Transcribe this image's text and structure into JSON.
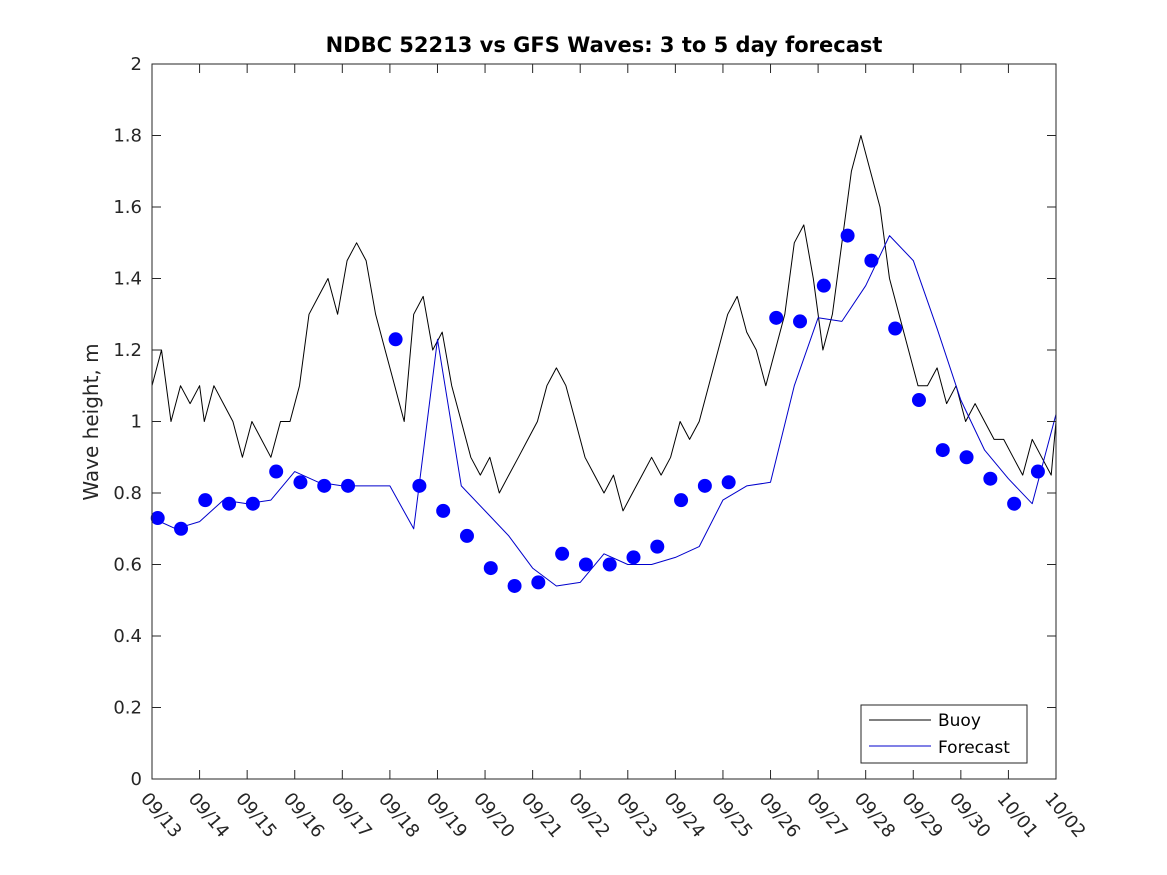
{
  "chart_data": {
    "type": "line",
    "title": "NDBC 52213 vs GFS Waves: 3 to 5 day forecast",
    "xlabel": "",
    "ylabel": "Wave height, m",
    "ylim": [
      0,
      2
    ],
    "xlim": [
      0,
      19
    ],
    "yticks": [
      0,
      0.2,
      0.4,
      0.6,
      0.8,
      1,
      1.2,
      1.4,
      1.6,
      1.8,
      2
    ],
    "ytick_labels": [
      "0",
      "0.2",
      "0.4",
      "0.6",
      "0.8",
      "1",
      "1.2",
      "1.4",
      "1.6",
      "1.8",
      "2"
    ],
    "xtick_labels": [
      "09/13",
      "09/14",
      "09/15",
      "09/16",
      "09/17",
      "09/18",
      "09/19",
      "09/20",
      "09/21",
      "09/22",
      "09/23",
      "09/24",
      "09/25",
      "09/26",
      "09/27",
      "09/28",
      "09/29",
      "09/30",
      "10/01",
      "10/02"
    ],
    "grid": false,
    "legend": {
      "position": "bottom-right",
      "entries": [
        {
          "label": "Buoy",
          "color": "#000000"
        },
        {
          "label": "Forecast",
          "color": "#0000cc"
        }
      ]
    },
    "series": [
      {
        "name": "Buoy",
        "color": "#000000",
        "x": [
          0,
          0.2,
          0.4,
          0.6,
          0.8,
          1,
          1.1,
          1.3,
          1.5,
          1.7,
          1.9,
          2.1,
          2.3,
          2.5,
          2.7,
          2.9,
          3.1,
          3.3,
          3.5,
          3.7,
          3.9,
          4.1,
          4.3,
          4.5,
          4.7,
          4.9,
          5.1,
          5.3,
          5.5,
          5.7,
          5.9,
          6.1,
          6.3,
          6.5,
          6.7,
          6.9,
          7.1,
          7.3,
          7.5,
          7.7,
          7.9,
          8.1,
          8.3,
          8.5,
          8.7,
          8.9,
          9.1,
          9.3,
          9.5,
          9.7,
          9.9,
          10.1,
          10.3,
          10.5,
          10.7,
          10.9,
          11.1,
          11.3,
          11.5,
          11.7,
          11.9,
          12.1,
          12.3,
          12.5,
          12.7,
          12.9,
          13.1,
          13.3,
          13.5,
          13.7,
          13.9,
          14.1,
          14.3,
          14.5,
          14.7,
          14.9,
          15.1,
          15.3,
          15.5,
          15.7,
          15.9,
          16.1,
          16.3,
          16.5,
          16.7,
          16.9,
          17.1,
          17.3,
          17.5,
          17.7,
          17.9,
          18.1,
          18.3,
          18.5,
          18.7,
          18.9,
          19
        ],
        "values": [
          1.1,
          1.2,
          1.0,
          1.1,
          1.05,
          1.1,
          1.0,
          1.1,
          1.05,
          1.0,
          0.9,
          1.0,
          0.95,
          0.9,
          1.0,
          1.0,
          1.1,
          1.3,
          1.35,
          1.4,
          1.3,
          1.45,
          1.5,
          1.45,
          1.3,
          1.2,
          1.1,
          1.0,
          1.3,
          1.35,
          1.2,
          1.25,
          1.1,
          1.0,
          0.9,
          0.85,
          0.9,
          0.8,
          0.85,
          0.9,
          0.95,
          1.0,
          1.1,
          1.15,
          1.1,
          1.0,
          0.9,
          0.85,
          0.8,
          0.85,
          0.75,
          0.8,
          0.85,
          0.9,
          0.85,
          0.9,
          1.0,
          0.95,
          1.0,
          1.1,
          1.2,
          1.3,
          1.35,
          1.25,
          1.2,
          1.1,
          1.2,
          1.3,
          1.5,
          1.55,
          1.4,
          1.2,
          1.3,
          1.5,
          1.7,
          1.8,
          1.7,
          1.6,
          1.4,
          1.3,
          1.2,
          1.1,
          1.1,
          1.15,
          1.05,
          1.1,
          1.0,
          1.05,
          1.0,
          0.95,
          0.95,
          0.9,
          0.85,
          0.95,
          0.9,
          0.85,
          1.0
        ]
      },
      {
        "name": "Forecast",
        "color": "#0000cc",
        "x": [
          0,
          0.5,
          1,
          1.5,
          2,
          2.5,
          3,
          3.5,
          4,
          4.5,
          5,
          5.5,
          6,
          6.5,
          7,
          7.5,
          8,
          8.5,
          9,
          9.5,
          10,
          10.5,
          11,
          11.5,
          12,
          12.5,
          13,
          13.5,
          14,
          14.5,
          15,
          15.5,
          16,
          16.5,
          17,
          17.5,
          18,
          18.5,
          19
        ],
        "values": [
          0.73,
          0.7,
          0.72,
          0.78,
          0.77,
          0.78,
          0.86,
          0.83,
          0.82,
          0.82,
          0.82,
          0.7,
          1.23,
          0.82,
          0.75,
          0.68,
          0.59,
          0.54,
          0.55,
          0.63,
          0.6,
          0.6,
          0.62,
          0.65,
          0.78,
          0.82,
          0.83,
          1.1,
          1.29,
          1.28,
          1.38,
          1.52,
          1.45,
          1.26,
          1.06,
          0.92,
          0.84,
          0.77,
          1.02
        ]
      },
      {
        "name": "Forecast markers",
        "color": "#0000ff",
        "x": [
          0.12,
          0.61,
          1.12,
          1.62,
          2.12,
          2.61,
          3.12,
          3.62,
          4.12,
          5.12,
          5.62,
          6.12,
          6.62,
          7.12,
          7.62,
          8.12,
          8.62,
          9.12,
          9.62,
          10.12,
          10.62,
          11.12,
          11.62,
          12.12,
          13.12,
          13.62,
          14.12,
          14.62,
          15.12,
          15.62,
          16.12,
          16.62,
          17.12,
          17.62,
          18.12,
          18.62
        ],
        "values": [
          0.73,
          0.7,
          0.78,
          0.77,
          0.77,
          0.86,
          0.83,
          0.82,
          0.82,
          1.23,
          0.82,
          0.75,
          0.68,
          0.59,
          0.54,
          0.55,
          0.63,
          0.6,
          0.6,
          0.62,
          0.65,
          0.78,
          0.82,
          0.83,
          1.29,
          1.28,
          1.38,
          1.52,
          1.45,
          1.26,
          1.06,
          0.92,
          0.9,
          0.84,
          0.77,
          0.86
        ]
      }
    ]
  }
}
